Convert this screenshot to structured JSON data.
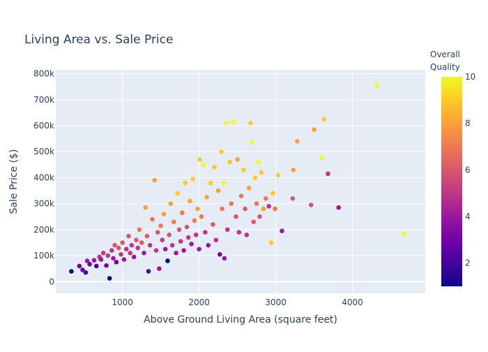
{
  "chart_data": {
    "type": "scatter",
    "title": "Living Area vs. Sale Price",
    "xlabel": "Above Ground Living Area (square feet)",
    "ylabel": "Sale Price ($)",
    "xlim": [
      130,
      4950
    ],
    "ylim": [
      -45000,
      815000
    ],
    "x_ticks": [
      1000,
      2000,
      3000,
      4000
    ],
    "x_tick_labels": [
      "1000",
      "2000",
      "3000",
      "4000"
    ],
    "y_ticks": [
      0,
      100000,
      200000,
      300000,
      400000,
      500000,
      600000,
      700000,
      800000
    ],
    "y_tick_labels": [
      "0",
      "100k",
      "200k",
      "300k",
      "400k",
      "500k",
      "600k",
      "700k",
      "800k"
    ],
    "grid": true,
    "colorbar": {
      "title_line1": "Overall",
      "title_line2": "Quality",
      "min": 1,
      "max": 10,
      "ticks": [
        2,
        4,
        6,
        8,
        10
      ],
      "tick_labels": [
        "2",
        "4",
        "6",
        "8",
        "10"
      ],
      "colorscale": [
        "#0d0887",
        "#46039f",
        "#7201a8",
        "#9c179e",
        "#bd3786",
        "#d8576b",
        "#ed7953",
        "#fb9f3a",
        "#fdca26",
        "#f0f921"
      ]
    },
    "points": [
      [
        334,
        39300,
        1
      ],
      [
        438,
        60000,
        3
      ],
      [
        480,
        45000,
        3
      ],
      [
        520,
        35000,
        2
      ],
      [
        540,
        80000,
        4
      ],
      [
        572,
        67000,
        3
      ],
      [
        630,
        82000,
        4
      ],
      [
        660,
        60000,
        2
      ],
      [
        700,
        95000,
        5
      ],
      [
        720,
        85000,
        4
      ],
      [
        750,
        110000,
        5
      ],
      [
        790,
        62000,
        3
      ],
      [
        810,
        100000,
        5
      ],
      [
        832,
        12789,
        1
      ],
      [
        860,
        120000,
        5
      ],
      [
        880,
        90000,
        4
      ],
      [
        900,
        140000,
        6
      ],
      [
        920,
        75000,
        3
      ],
      [
        950,
        130000,
        6
      ],
      [
        980,
        105000,
        5
      ],
      [
        1000,
        150000,
        6
      ],
      [
        1020,
        85000,
        4
      ],
      [
        1050,
        125000,
        5
      ],
      [
        1080,
        175000,
        6
      ],
      [
        1100,
        110000,
        5
      ],
      [
        1120,
        140000,
        5
      ],
      [
        1150,
        95000,
        4
      ],
      [
        1180,
        160000,
        6
      ],
      [
        1200,
        130000,
        5
      ],
      [
        1220,
        200000,
        7
      ],
      [
        1250,
        150000,
        6
      ],
      [
        1280,
        110000,
        4
      ],
      [
        1300,
        285000,
        8
      ],
      [
        1320,
        175000,
        6
      ],
      [
        1340,
        40000,
        2
      ],
      [
        1360,
        140000,
        5
      ],
      [
        1390,
        240000,
        7
      ],
      [
        1420,
        390000,
        8
      ],
      [
        1440,
        120000,
        5
      ],
      [
        1460,
        190000,
        6
      ],
      [
        1480,
        50000,
        4
      ],
      [
        1500,
        215000,
        7
      ],
      [
        1520,
        160000,
        5
      ],
      [
        1540,
        260000,
        8
      ],
      [
        1560,
        125000,
        4
      ],
      [
        1590,
        80000,
        1
      ],
      [
        1610,
        180000,
        6
      ],
      [
        1630,
        300000,
        8
      ],
      [
        1650,
        140000,
        5
      ],
      [
        1670,
        230000,
        7
      ],
      [
        1700,
        110000,
        4
      ],
      [
        1720,
        340000,
        9
      ],
      [
        1740,
        200000,
        6
      ],
      [
        1760,
        155000,
        5
      ],
      [
        1780,
        265000,
        7
      ],
      [
        1800,
        120000,
        4
      ],
      [
        1820,
        380000,
        9
      ],
      [
        1840,
        210000,
        6
      ],
      [
        1860,
        170000,
        5
      ],
      [
        1880,
        310000,
        8
      ],
      [
        1900,
        145000,
        4
      ],
      [
        1920,
        395000,
        9
      ],
      [
        1940,
        235000,
        7
      ],
      [
        1960,
        180000,
        5
      ],
      [
        1980,
        280000,
        8
      ],
      [
        2000,
        125000,
        4
      ],
      [
        2010,
        470000,
        9
      ],
      [
        2030,
        250000,
        7
      ],
      [
        2060,
        450000,
        10
      ],
      [
        2080,
        190000,
        5
      ],
      [
        2100,
        325000,
        8
      ],
      [
        2120,
        140000,
        4
      ],
      [
        2150,
        380000,
        9
      ],
      [
        2180,
        220000,
        6
      ],
      [
        2200,
        440000,
        9
      ],
      [
        2220,
        160000,
        5
      ],
      [
        2250,
        350000,
        8
      ],
      [
        2270,
        105000,
        3
      ],
      [
        2290,
        500000,
        9
      ],
      [
        2300,
        280000,
        7
      ],
      [
        2320,
        380000,
        10
      ],
      [
        2330,
        90000,
        4
      ],
      [
        2350,
        610000,
        10
      ],
      [
        2370,
        200000,
        5
      ],
      [
        2400,
        460000,
        9
      ],
      [
        2420,
        300000,
        7
      ],
      [
        2450,
        615000,
        10
      ],
      [
        2480,
        250000,
        6
      ],
      [
        2500,
        470000,
        8
      ],
      [
        2520,
        190000,
        5
      ],
      [
        2550,
        330000,
        7
      ],
      [
        2580,
        430000,
        9
      ],
      [
        2600,
        280000,
        6
      ],
      [
        2620,
        180000,
        5
      ],
      [
        2650,
        360000,
        8
      ],
      [
        2670,
        610000,
        9
      ],
      [
        2690,
        535000,
        10
      ],
      [
        2710,
        230000,
        6
      ],
      [
        2730,
        400000,
        9
      ],
      [
        2750,
        300000,
        7
      ],
      [
        2770,
        460000,
        10
      ],
      [
        2790,
        250000,
        6
      ],
      [
        2810,
        420000,
        9
      ],
      [
        2840,
        280000,
        8
      ],
      [
        2870,
        320000,
        7
      ],
      [
        2910,
        290000,
        5
      ],
      [
        2940,
        150000,
        9
      ],
      [
        2960,
        340000,
        9
      ],
      [
        2990,
        280000,
        7
      ],
      [
        3030,
        410000,
        9
      ],
      [
        3080,
        195000,
        4
      ],
      [
        3230,
        430000,
        8
      ],
      [
        3220,
        320000,
        6
      ],
      [
        3280,
        540000,
        8
      ],
      [
        3460,
        295000,
        6
      ],
      [
        3500,
        585000,
        8
      ],
      [
        3600,
        475000,
        10
      ],
      [
        3630,
        625000,
        9
      ],
      [
        3680,
        415000,
        5
      ],
      [
        3820,
        285000,
        4
      ],
      [
        4316,
        755000,
        10
      ],
      [
        4676,
        184750,
        10
      ]
    ]
  }
}
